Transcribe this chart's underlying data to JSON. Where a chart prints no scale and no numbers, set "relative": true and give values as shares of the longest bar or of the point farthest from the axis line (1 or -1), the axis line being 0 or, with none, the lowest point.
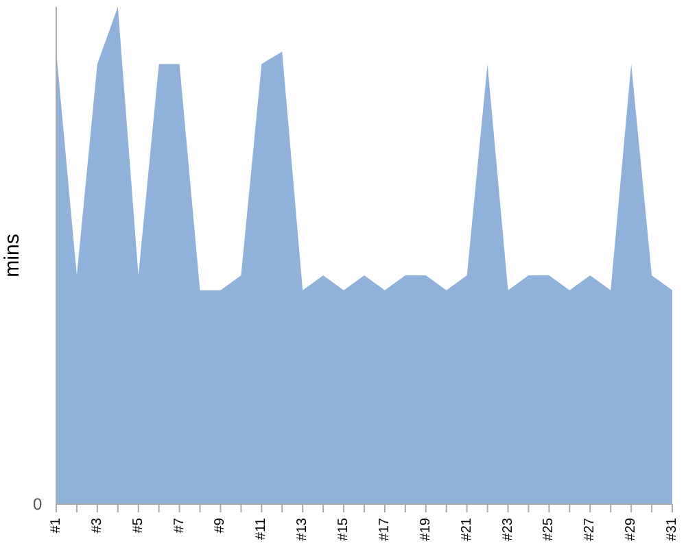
{
  "chart_data": {
    "type": "area",
    "relative": true,
    "ylabel": "mins",
    "annotations": [
      "0"
    ],
    "color": "#8fb1da",
    "grid": false,
    "legend": false,
    "categories": [
      "#1",
      null,
      "#3",
      null,
      "#5",
      null,
      "#7",
      null,
      "#9",
      null,
      "#11",
      null,
      "#13",
      null,
      "#15",
      null,
      "#17",
      null,
      "#19",
      null,
      "#21",
      null,
      "#23",
      null,
      "#25",
      null,
      "#27",
      null,
      "#29",
      null,
      "#31"
    ],
    "values": [
      0.91,
      0.46,
      0.885,
      1,
      0.46,
      0.885,
      0.885,
      0.43,
      0.43,
      0.46,
      0.885,
      0.91,
      0.43,
      0.46,
      0.43,
      0.46,
      0.43,
      0.46,
      0.46,
      0.43,
      0.46,
      0.885,
      0.43,
      0.46,
      0.46,
      0.43,
      0.46,
      0.43,
      0.885,
      0.46,
      0.43
    ]
  }
}
